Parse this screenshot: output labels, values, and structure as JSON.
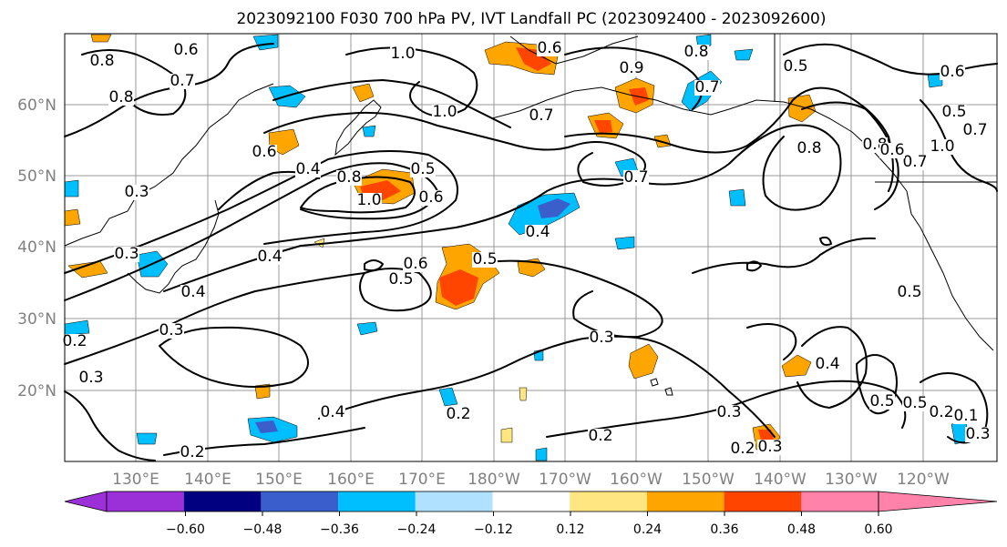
{
  "title": "2023092100 F030 700 hPa PV, IVT Landfall PC (2023092400 - 2023092600)",
  "lat_labels": [
    "60°N",
    "50°N",
    "40°N",
    "30°N",
    "20°N"
  ],
  "lon_labels": [
    "130°E",
    "140°E",
    "150°E",
    "160°E",
    "170°E",
    "180°W",
    "170°W",
    "160°W",
    "150°W",
    "140°W",
    "130°W",
    "120°W"
  ],
  "colorbar": {
    "ticks": [
      "−0.60",
      "−0.48",
      "−0.36",
      "−0.24",
      "−0.12",
      "0.12",
      "0.24",
      "0.36",
      "0.48",
      "0.60"
    ],
    "colors": [
      "#9b30d9",
      "#000080",
      "#3a5fcd",
      "#00bfff",
      "#b0e2ff",
      "#ffffff",
      "#ffe680",
      "#ffa500",
      "#ff4500",
      "#b22222",
      "#ff82ab",
      "#ff82ab"
    ]
  },
  "contour_labels": [
    "0.8",
    "0.6",
    "0.7",
    "0.8",
    "1.0",
    "0.6",
    "0.9",
    "0.7",
    "1.0",
    "0.7",
    "0.8",
    "0.5",
    "0.6",
    "0.5",
    "0.7",
    "0.6",
    "0.3",
    "0.4",
    "0.5",
    "0.8",
    "1.0",
    "0.6",
    "0.7",
    "0.8",
    "1.0",
    "0.8",
    "0.7",
    "0.6",
    "0.4",
    "0.3",
    "0.4",
    "0.5",
    "0.5",
    "0.6",
    "0.4",
    "0.5",
    "0.4",
    "0.3",
    "0.3",
    "0.3",
    "0.5",
    "0.4",
    "0.2",
    "0.3",
    "0.2",
    "0.5",
    "0.2",
    "0.3",
    "0.2",
    "0.2",
    "0.3",
    "0.1",
    "0.2"
  ]
}
